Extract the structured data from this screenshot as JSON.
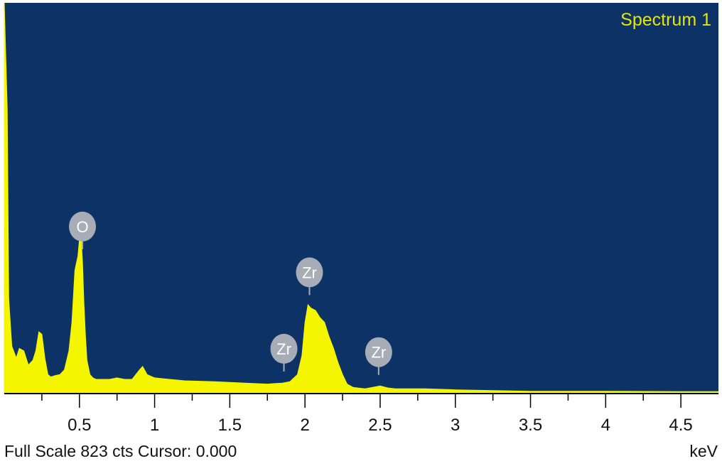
{
  "chart_data": {
    "type": "area",
    "title": "Spectrum 1",
    "xlabel": "keV",
    "ylabel": "",
    "xlim": [
      0.0,
      4.75
    ],
    "ylim": [
      0,
      823
    ],
    "x_ticks": [
      0.5,
      1,
      1.5,
      2,
      2.5,
      3,
      3.5,
      4,
      4.5
    ],
    "x_tick_labels": [
      "0.5",
      "1",
      "1.5",
      "2",
      "2.5",
      "3",
      "3.5",
      "4",
      "4.5"
    ],
    "grid": false,
    "series": [
      {
        "x": [
          0.0,
          0.02,
          0.03,
          0.05,
          0.08,
          0.1,
          0.13,
          0.16,
          0.19,
          0.21,
          0.23,
          0.25,
          0.27,
          0.29,
          0.31,
          0.34,
          0.37,
          0.4,
          0.43,
          0.45,
          0.47,
          0.49,
          0.5,
          0.51,
          0.52,
          0.53,
          0.54,
          0.55,
          0.57,
          0.59,
          0.61,
          0.64,
          0.7,
          0.75,
          0.8,
          0.85,
          0.9,
          0.92,
          0.95,
          1.0,
          1.1,
          1.2,
          1.4,
          1.6,
          1.75,
          1.85,
          1.9,
          1.95,
          1.98,
          2.0,
          2.02,
          2.04,
          2.07,
          2.1,
          2.13,
          2.16,
          2.19,
          2.22,
          2.25,
          2.28,
          2.32,
          2.4,
          2.45,
          2.5,
          2.55,
          2.6,
          2.8,
          3.0,
          3.5,
          4.0,
          4.5,
          4.75
        ],
        "y": [
          823,
          600,
          200,
          100,
          75,
          95,
          90,
          60,
          70,
          90,
          130,
          125,
          75,
          40,
          35,
          38,
          40,
          50,
          90,
          150,
          260,
          290,
          325,
          335,
          280,
          190,
          120,
          70,
          40,
          33,
          30,
          30,
          30,
          33,
          30,
          30,
          50,
          57,
          40,
          33,
          30,
          27,
          25,
          22,
          20,
          22,
          25,
          40,
          80,
          150,
          187,
          180,
          175,
          160,
          150,
          120,
          95,
          65,
          40,
          20,
          13,
          10,
          13,
          16,
          12,
          10,
          10,
          8,
          5,
          5,
          4,
          4
        ]
      }
    ],
    "peak_labels": [
      {
        "label": "O",
        "x": 0.52
      },
      {
        "label": "Zr",
        "x": 2.03
      },
      {
        "label": "Zr",
        "x": 1.86
      },
      {
        "label": "Zr",
        "x": 2.49
      }
    ],
    "colors": {
      "background": "#0d3366",
      "fill": "#f5f500",
      "title": "#e6e600",
      "marker": "#a7adb6",
      "marker_text": "#ffffff",
      "axis": "#000000"
    }
  },
  "status": {
    "left_text": "Full Scale 823 cts Cursor: 0.000",
    "unit_text": "keV"
  }
}
